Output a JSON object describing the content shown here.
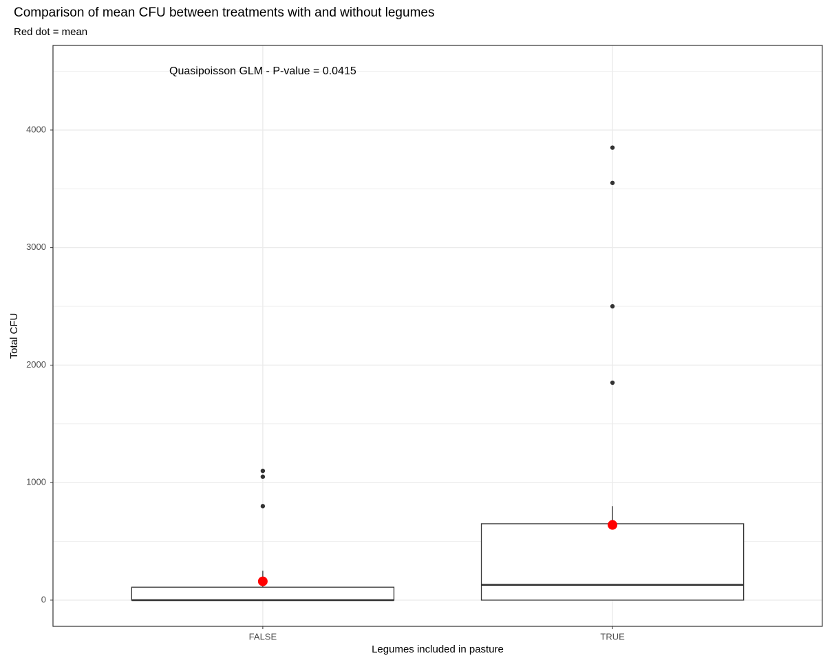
{
  "chart_data": {
    "type": "boxplot",
    "title": "Comparison of mean CFU between treatments with and without legumes",
    "subtitle": "Red dot = mean",
    "annotation": "Quasipoisson GLM - P-value = 0.0415",
    "x_label": "Legumes included in pasture",
    "y_label": "Total CFU",
    "categories": [
      "FALSE",
      "TRUE"
    ],
    "boxes": [
      {
        "min": 0,
        "q1": 0,
        "median": 0,
        "q3": 110,
        "max": 250,
        "outliers": [
          1100,
          1050,
          800
        ],
        "mean": 160
      },
      {
        "min": 0,
        "q1": 0,
        "median": 130,
        "q3": 650,
        "max": 800,
        "outliers": [
          3850,
          3550,
          2500,
          1850
        ],
        "mean": 640
      }
    ],
    "box_color": "#333333",
    "mean_color": "#ff0000",
    "outlier_color": "#333333",
    "ylim": [
      -223,
      4720
    ],
    "yticks": [
      0,
      1000,
      2000,
      3000,
      4000
    ],
    "yminor": [
      500,
      1500,
      2500,
      3500,
      4500
    ],
    "grid": true
  }
}
